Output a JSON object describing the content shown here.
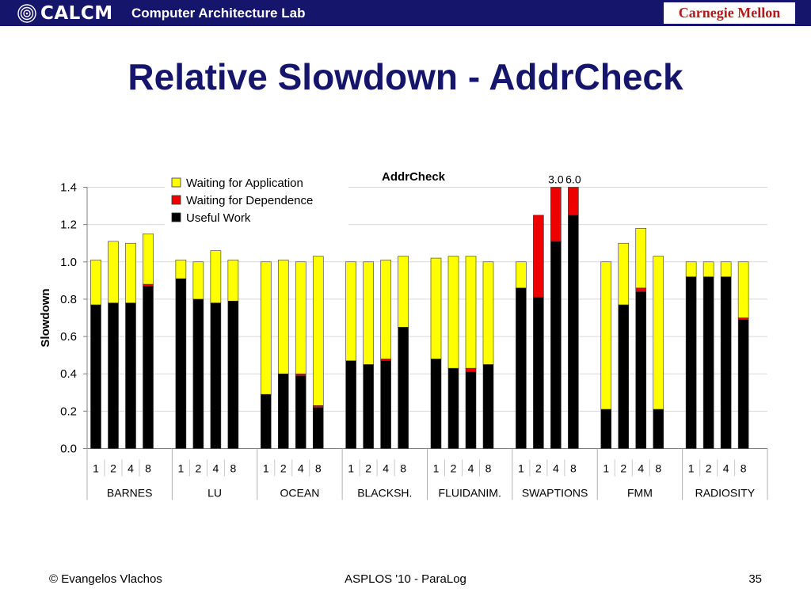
{
  "header": {
    "logo_text": "CALCM",
    "lab_name": "Computer Architecture Lab",
    "university": "Carnegie Mellon"
  },
  "slide": {
    "title": "Relative Slowdown - AddrCheck"
  },
  "footer": {
    "author": "© Evangelos Vlachos",
    "venue": "ASPLOS '10 - ParaLog",
    "page": "35"
  },
  "colors": {
    "header_bg": "#15156b",
    "title": "#15156b",
    "useful_work": "#000000",
    "waiting_dependence": "#ee0000",
    "waiting_application": "#ffff00"
  },
  "chart_data": {
    "type": "bar",
    "stacked": true,
    "title": "AddrCheck",
    "ylabel": "Slowdown",
    "xlabel": "",
    "ylim": [
      0,
      1.4
    ],
    "yticks": [
      "0.0",
      "0.2",
      "0.4",
      "0.6",
      "0.8",
      "1.0",
      "1.2",
      "1.4"
    ],
    "grid": true,
    "legend_position": "top-left",
    "groups": [
      "BARNES",
      "LU",
      "OCEAN",
      "BLACKSH.",
      "FLUIDANIM.",
      "SWAPTIONS",
      "FMM",
      "RADIOSITY"
    ],
    "categories": [
      "1",
      "2",
      "4",
      "8"
    ],
    "series": [
      {
        "name": "Useful Work",
        "color": "#000000",
        "values": [
          [
            0.77,
            0.78,
            0.78,
            0.87
          ],
          [
            0.91,
            0.8,
            0.78,
            0.79
          ],
          [
            0.29,
            0.4,
            0.39,
            0.22
          ],
          [
            0.47,
            0.45,
            0.47,
            0.65
          ],
          [
            0.48,
            0.43,
            0.41,
            0.45
          ],
          [
            0.86,
            0.81,
            1.11,
            1.25
          ],
          [
            0.21,
            0.77,
            0.84,
            0.21
          ],
          [
            0.92,
            0.92,
            0.92,
            0.69
          ]
        ]
      },
      {
        "name": "Waiting for Dependence",
        "color": "#ee0000",
        "values": [
          [
            0.0,
            0.0,
            0.0,
            0.01
          ],
          [
            0.0,
            0.0,
            0.0,
            0.0
          ],
          [
            0.0,
            0.0,
            0.01,
            0.01
          ],
          [
            0.0,
            0.0,
            0.01,
            0.0
          ],
          [
            0.0,
            0.0,
            0.02,
            0.0
          ],
          [
            0.0,
            0.44,
            0.29,
            0.15
          ],
          [
            0.0,
            0.0,
            0.02,
            0.0
          ],
          [
            0.0,
            0.0,
            0.0,
            0.01
          ]
        ]
      },
      {
        "name": "Waiting for Application",
        "color": "#ffff00",
        "values": [
          [
            0.24,
            0.33,
            0.32,
            0.27
          ],
          [
            0.1,
            0.2,
            0.28,
            0.22
          ],
          [
            0.71,
            0.61,
            0.6,
            0.8
          ],
          [
            0.53,
            0.55,
            0.53,
            0.38
          ],
          [
            0.54,
            0.6,
            0.6,
            0.55
          ],
          [
            0.14,
            0.0,
            0.0,
            0.0
          ],
          [
            0.79,
            0.33,
            0.32,
            0.82
          ],
          [
            0.08,
            0.08,
            0.08,
            0.3
          ]
        ]
      }
    ],
    "annotations": [
      {
        "group": 5,
        "category": 2,
        "text": "3.0",
        "total": 3.0
      },
      {
        "group": 5,
        "category": 3,
        "text": "6.0",
        "total": 6.0
      }
    ]
  }
}
